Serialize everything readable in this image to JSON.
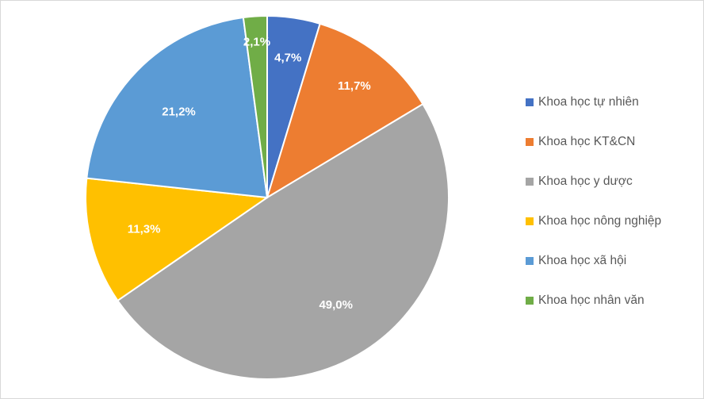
{
  "chart_data": {
    "type": "pie",
    "start_angle_deg": 0,
    "direction": "clockwise",
    "slices": [
      {
        "label": "Khoa học tự nhiên",
        "value": 4.7,
        "display": "4,7%",
        "color": "#4472C4"
      },
      {
        "label": "Khoa học KT&CN",
        "value": 11.7,
        "display": "11,7%",
        "color": "#ED7D31"
      },
      {
        "label": "Khoa học y dược",
        "value": 49.0,
        "display": "49,0%",
        "color": "#A5A5A5"
      },
      {
        "label": "Khoa học nông nghiệp",
        "value": 11.3,
        "display": "11,3%",
        "color": "#FFC000"
      },
      {
        "label": "Khoa học xã hội",
        "value": 21.2,
        "display": "21,2%",
        "color": "#5B9BD5"
      },
      {
        "label": "Khoa học nhân văn",
        "value": 2.1,
        "display": "2,1%",
        "color": "#70AD47"
      }
    ],
    "legend_position": "right"
  }
}
